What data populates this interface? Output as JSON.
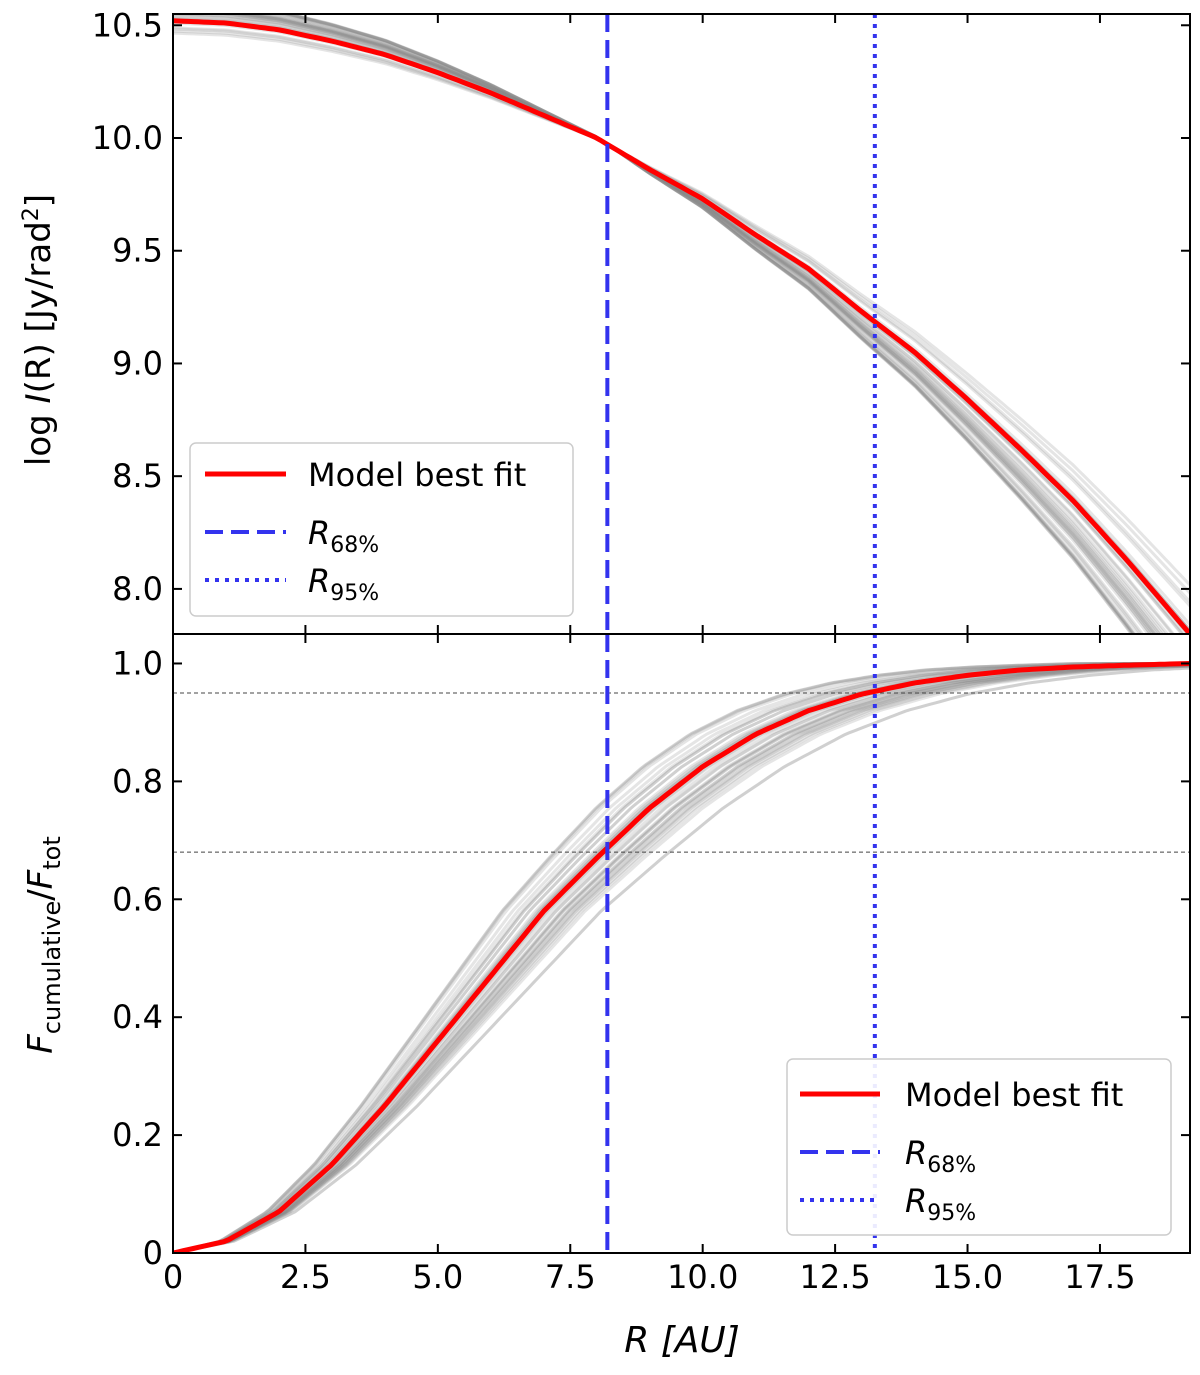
{
  "chart_data": [
    {
      "type": "line",
      "panel": "top",
      "ylabel_prefix": "log ",
      "ylabel_italic": "I",
      "ylabel_suffix": "(R)    [Jy/rad",
      "ylabel_sup": "2",
      "ylabel_close": "]",
      "xlim": [
        0,
        19.2
      ],
      "ylim": [
        7.8,
        10.55
      ],
      "yticks": [
        8.0,
        8.5,
        9.0,
        9.5,
        10.0,
        10.5
      ],
      "ytick_labels": [
        "8.0",
        "8.5",
        "9.0",
        "9.5",
        "10.0",
        "10.5"
      ],
      "best_fit": {
        "name": "Model best fit",
        "color": "#ff0000",
        "x": [
          0,
          1,
          2,
          3,
          4,
          5,
          6,
          7,
          8,
          9,
          10,
          11,
          12,
          13,
          14,
          15,
          16,
          17,
          18,
          19.2
        ],
        "y": [
          10.52,
          10.51,
          10.48,
          10.43,
          10.37,
          10.29,
          10.2,
          10.1,
          10.0,
          9.86,
          9.73,
          9.57,
          9.42,
          9.23,
          9.05,
          8.84,
          8.62,
          8.39,
          8.13,
          7.8
        ]
      },
      "samples_note": "MCMC posterior draws (grey)",
      "legend": {
        "position": "lower-left",
        "entries": [
          {
            "label": "Model best fit",
            "style": "solid",
            "color": "#ff0000"
          },
          {
            "label_main": "R",
            "label_sub": "68%",
            "style": "dashed",
            "color": "#3333ee"
          },
          {
            "label_main": "R",
            "label_sub": "95%",
            "style": "dotted",
            "color": "#3333ee"
          }
        ]
      }
    },
    {
      "type": "line",
      "panel": "bottom",
      "ylabel_main1": "F",
      "ylabel_sub1": "cumulative",
      "ylabel_slash": "/",
      "ylabel_main2": "F",
      "ylabel_sub2": "tot",
      "xlabel_main": "R",
      "xlabel_unit": "[AU]",
      "xlim": [
        0,
        19.2
      ],
      "ylim": [
        0,
        1.05
      ],
      "xticks": [
        0,
        2.5,
        5.0,
        7.5,
        10.0,
        12.5,
        15.0,
        17.5
      ],
      "xtick_labels": [
        "0",
        "2.5",
        "5.0",
        "7.5",
        "10.0",
        "12.5",
        "15.0",
        "17.5"
      ],
      "yticks": [
        0,
        0.2,
        0.4,
        0.6,
        0.8,
        1.0
      ],
      "ytick_labels": [
        "0",
        "0.2",
        "0.4",
        "0.6",
        "0.8",
        "1.0"
      ],
      "hlines": [
        0.68,
        0.95
      ],
      "best_fit": {
        "name": "Model best fit",
        "color": "#ff0000",
        "x": [
          0,
          1,
          2,
          3,
          4,
          5,
          6,
          7,
          8,
          9,
          10,
          11,
          12,
          13,
          14,
          15,
          16,
          17,
          18,
          19.2
        ],
        "y": [
          0,
          0.02,
          0.07,
          0.15,
          0.25,
          0.36,
          0.47,
          0.58,
          0.67,
          0.755,
          0.825,
          0.88,
          0.92,
          0.948,
          0.967,
          0.98,
          0.989,
          0.994,
          0.997,
          1.0
        ]
      },
      "legend": {
        "position": "lower-right",
        "entries": [
          {
            "label": "Model best fit",
            "style": "solid",
            "color": "#ff0000"
          },
          {
            "label_main": "R",
            "label_sub": "68%",
            "style": "dashed",
            "color": "#3333ee"
          },
          {
            "label_main": "R",
            "label_sub": "95%",
            "style": "dotted",
            "color": "#3333ee"
          }
        ]
      }
    }
  ],
  "vlines": {
    "R68": {
      "x": 8.2,
      "color": "#3333ee",
      "style": "dashed"
    },
    "R95": {
      "x": 13.25,
      "color": "#3333ee",
      "style": "dotted"
    }
  },
  "samples": {
    "count": 40,
    "color": "#888888",
    "alpha": 0.22,
    "ref_radius": 8.2,
    "top_scale_range": [
      0.9,
      1.18
    ],
    "bottom_scale_range": [
      0.85,
      1.15
    ]
  }
}
